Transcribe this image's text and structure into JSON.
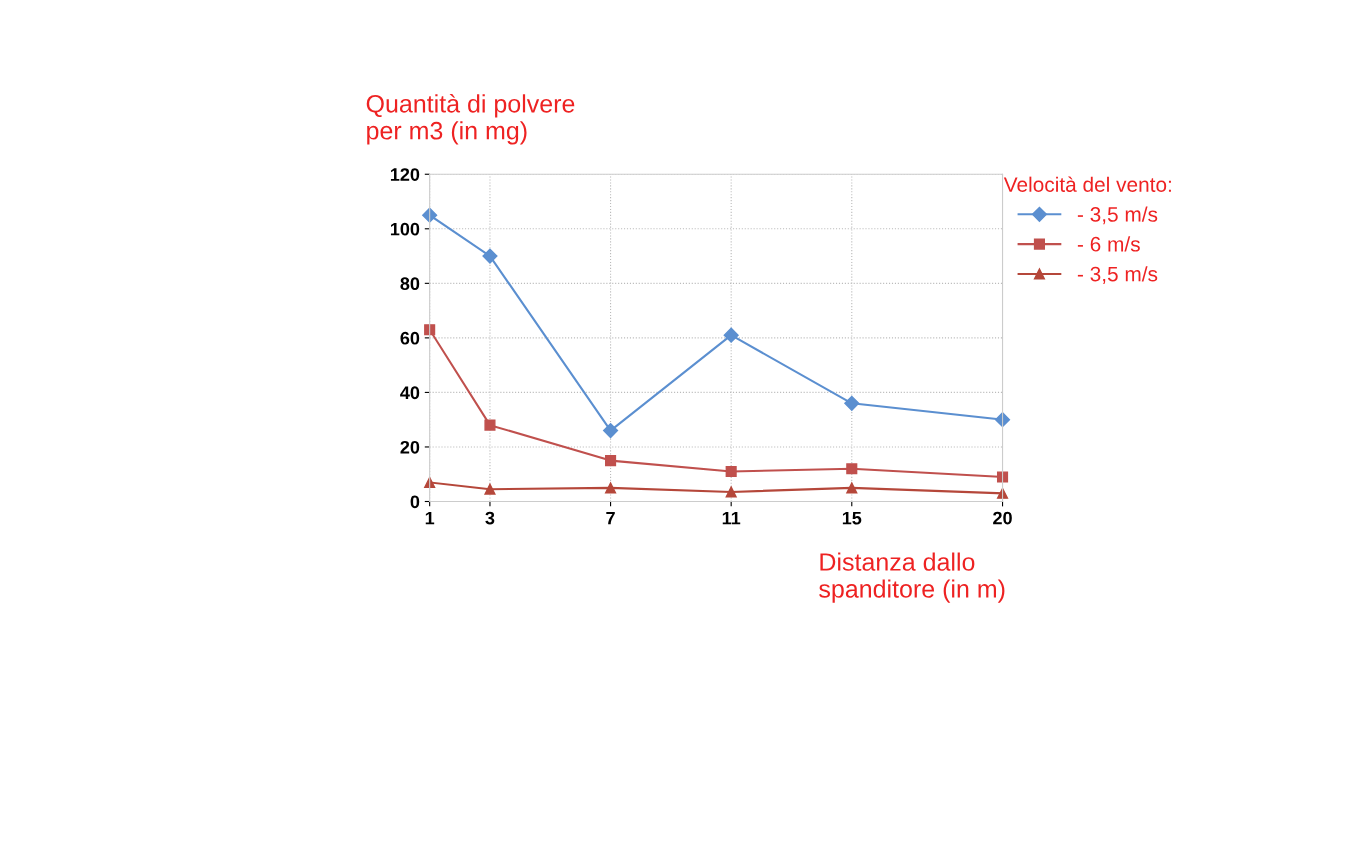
{
  "chart_data": {
    "type": "line",
    "ylabel": "Quantità di polvere\nper m3 (in mg)",
    "xlabel": "Distanza dallo\nspanditore (in m)",
    "legend_title": "Velocità del vento:",
    "x": [
      1,
      3,
      7,
      11,
      15,
      20
    ],
    "series": [
      {
        "name": "- 3,5 m/s",
        "color": "#5b8fd0",
        "marker": "diamond",
        "values": [
          105,
          90,
          26,
          61,
          36,
          30
        ]
      },
      {
        "name": "- 6 m/s",
        "color": "#c0504d",
        "marker": "square",
        "values": [
          63,
          28,
          15,
          11,
          12,
          9
        ]
      },
      {
        "name": "- 3,5 m/s",
        "color": "#b5473a",
        "marker": "triangle",
        "values": [
          7,
          4.5,
          5,
          3.5,
          5,
          3
        ]
      }
    ],
    "xlim": [
      1,
      20
    ],
    "xticks": [
      1,
      3,
      7,
      11,
      15,
      20
    ],
    "ylim": [
      0,
      120
    ],
    "yticks": [
      0,
      20,
      40,
      60,
      80,
      100,
      120
    ],
    "grid": true,
    "legend": "top right",
    "line_style": "solid"
  }
}
